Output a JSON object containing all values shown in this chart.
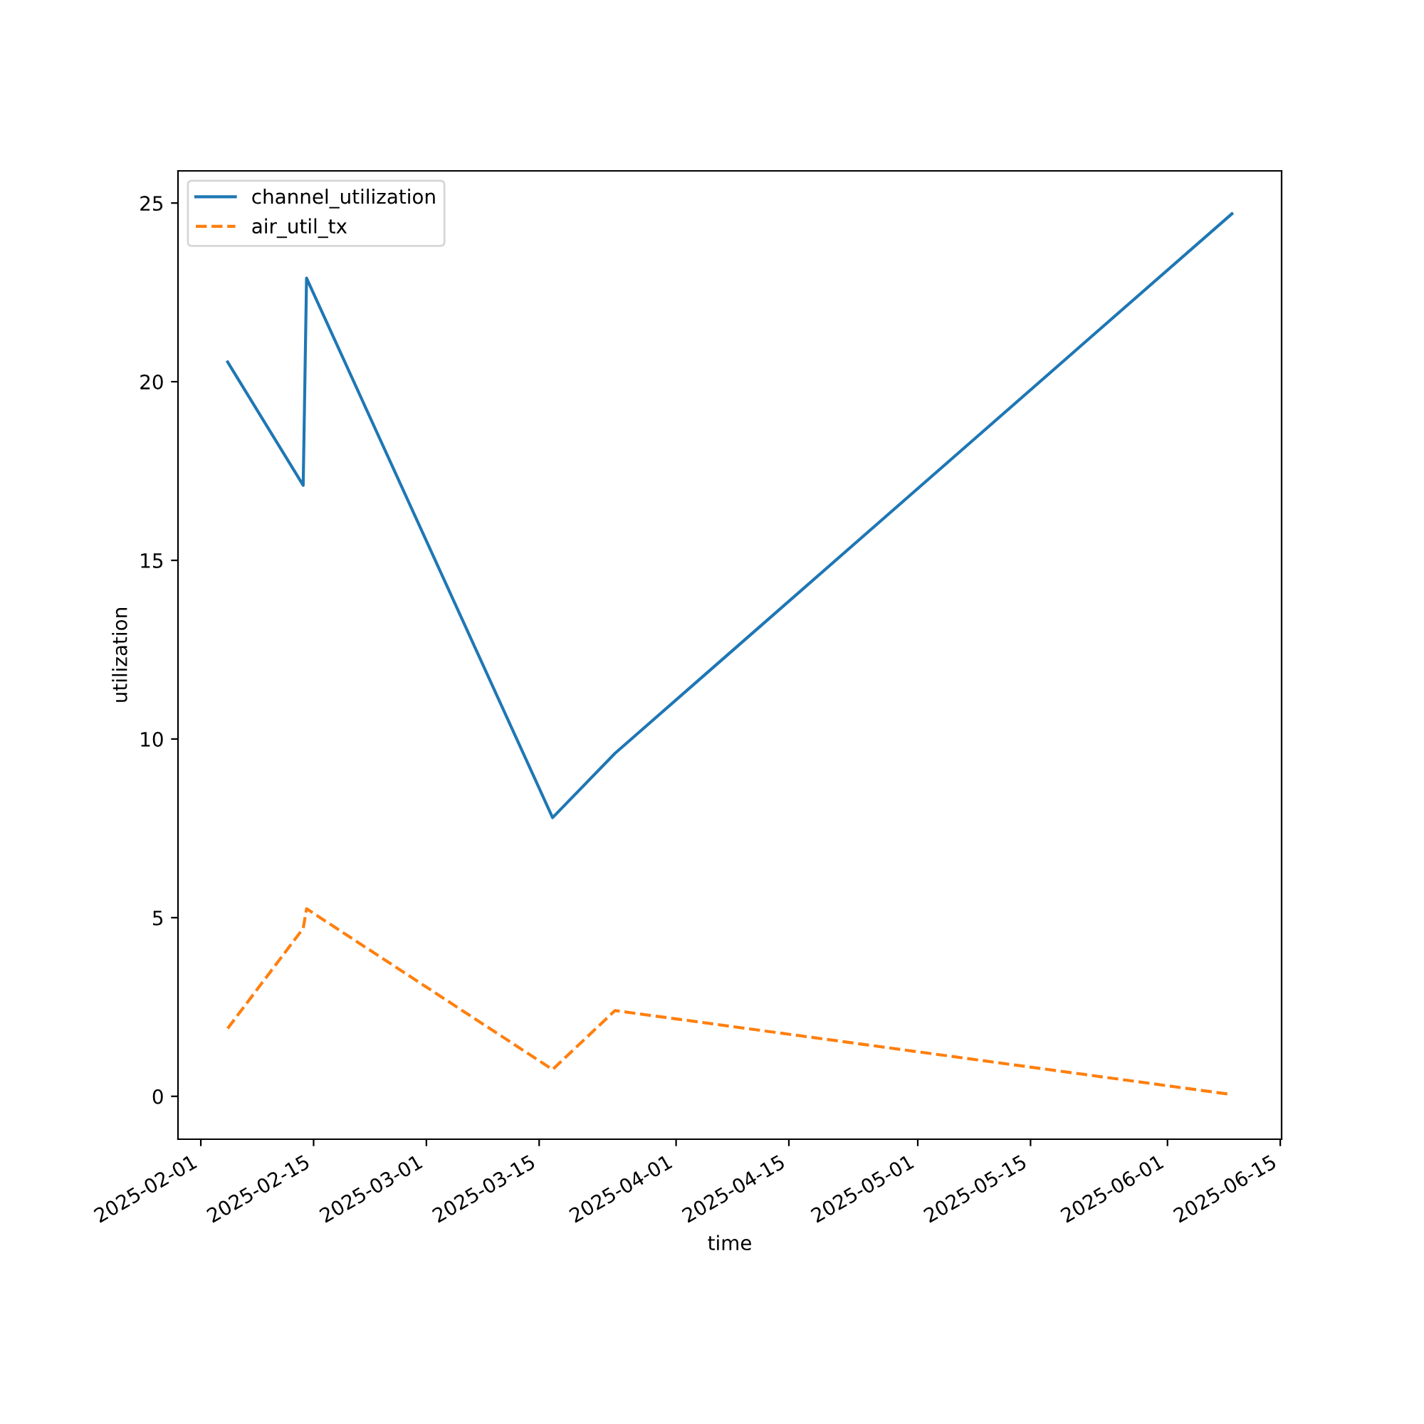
{
  "chart_data": {
    "type": "line",
    "xlabel": "time",
    "ylabel": "utilization",
    "x": [
      "2025-02-04T08:00",
      "2025-02-13T17:00",
      "2025-02-14T03:00",
      "2025-03-16T16:00",
      "2025-03-24T10:00",
      "2025-06-09T00:00"
    ],
    "series": [
      {
        "name": "channel_utilization",
        "color": "#1f77b4",
        "line_style": "solid",
        "values": [
          20.55,
          17.1,
          22.9,
          7.8,
          9.6,
          24.7
        ]
      },
      {
        "name": "air_util_tx",
        "color": "#ff7f0e",
        "line_style": "dashed",
        "values": [
          1.9,
          4.7,
          5.25,
          0.75,
          2.4,
          0.05
        ]
      }
    ],
    "xlim": [
      "2025-01-29T04:00",
      "2025-06-15T04:00"
    ],
    "xticks": [
      "2025-02-01",
      "2025-02-15",
      "2025-03-01",
      "2025-03-15",
      "2025-04-01",
      "2025-04-15",
      "2025-05-01",
      "2025-05-15",
      "2025-06-01",
      "2025-06-15"
    ],
    "ylim": [
      -1.2,
      25.9
    ],
    "yticks": [
      0,
      5,
      10,
      15,
      20,
      25
    ],
    "legend": "top left",
    "grid": false,
    "marker": "none"
  }
}
